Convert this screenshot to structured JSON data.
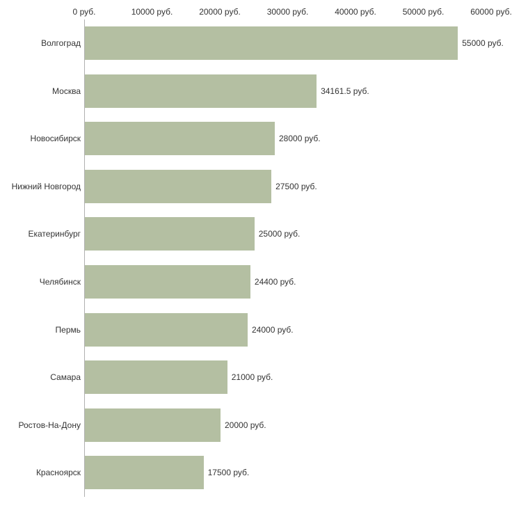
{
  "chart_data": {
    "type": "bar",
    "orientation": "horizontal",
    "title": "",
    "xlabel": "",
    "ylabel": "",
    "categories": [
      "Волгоград",
      "Москва",
      "Новосибирск",
      "Нижний Новгород",
      "Екатеринбург",
      "Челябинск",
      "Пермь",
      "Самара",
      "Ростов-На-Дону",
      "Красноярск"
    ],
    "values": [
      55000,
      34161.5,
      28000,
      27500,
      25000,
      24400,
      24000,
      21000,
      20000,
      17500
    ],
    "value_labels": [
      "55000 руб.",
      "34161.5 руб.",
      "28000 руб.",
      "27500 руб.",
      "25000 руб.",
      "24400 руб.",
      "24000 руб.",
      "21000 руб.",
      "20000 руб.",
      "17500 руб."
    ],
    "x_ticks": [
      0,
      10000,
      20000,
      30000,
      40000,
      50000,
      60000
    ],
    "x_tick_labels": [
      "0 руб.",
      "10000 руб.",
      "20000 руб.",
      "30000 руб.",
      "40000 руб.",
      "50000 руб.",
      "60000 руб."
    ],
    "xlim": [
      0,
      60000
    ],
    "grid": false,
    "legend_position": "none",
    "bar_color": "#b4bfa2",
    "axis_color": "#b0b0b0",
    "text_color": "#333333"
  }
}
